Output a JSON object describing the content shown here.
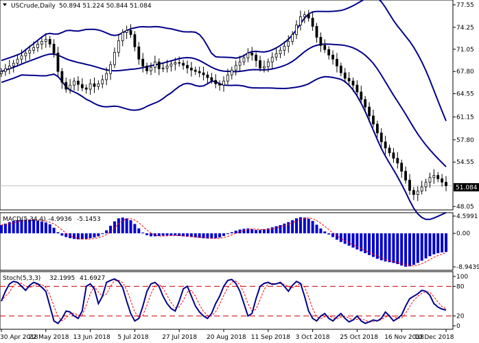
{
  "window": {
    "symbol_header": "USCrude,Daily",
    "ohlc_header": "50.894 51.224 50.844 51.084"
  },
  "current_price": "51.084",
  "colors": {
    "bands": "#00008b",
    "candle": "#000000",
    "macd_hist": "#0000cd",
    "signal": "#ff0000",
    "stoch_main": "#00008b",
    "stoch_signal": "#ff0000",
    "level_line": "#cc0000",
    "price_line": "#c0c0c0"
  },
  "chart_data": [
    {
      "type": "candlestick",
      "title": "USCrude,Daily",
      "indicators": [
        "Bollinger Bands"
      ],
      "y_ticks": [
        "77.55",
        "74.25",
        "71.05",
        "67.80",
        "64.55",
        "61.15",
        "57.80",
        "54.55",
        "51.084",
        "48.05"
      ],
      "ylim": [
        48.05,
        77.55
      ],
      "x_ticks": [
        "30 Apr 2018",
        "22 May 2018",
        "13 Jun 2018",
        "5 Jul 2018",
        "27 Jul 2018",
        "20 Aug 2018",
        "11 Sep 2018",
        "3 Oct 2018",
        "25 Oct 2018",
        "16 Nov 2018",
        "10 Dec 2018"
      ],
      "close_series": [
        67.8,
        68.2,
        68.6,
        69.0,
        69.6,
        70.1,
        70.5,
        70.9,
        71.3,
        71.8,
        72.2,
        72.5,
        71.8,
        70.5,
        67.8,
        66.2,
        65.2,
        65.8,
        66.4,
        65.9,
        65.4,
        65.2,
        66.0,
        65.6,
        66.0,
        66.6,
        67.5,
        68.8,
        70.6,
        72.3,
        73.5,
        73.8,
        73.2,
        71.4,
        69.6,
        68.6,
        67.9,
        68.4,
        69.2,
        68.2,
        68.3,
        68.6,
        68.9,
        69.1,
        69.0,
        68.7,
        68.3,
        68.0,
        67.8,
        67.6,
        67.3,
        66.9,
        66.5,
        66.0,
        65.8,
        66.4,
        67.3,
        68.0,
        68.7,
        69.2,
        69.8,
        70.5,
        70.2,
        69.4,
        68.3,
        68.5,
        69.2,
        69.9,
        70.4,
        70.9,
        71.5,
        72.2,
        73.2,
        74.6,
        75.8,
        76.1,
        75.6,
        74.4,
        72.8,
        71.6,
        71.0,
        70.2,
        69.6,
        68.6,
        67.6,
        66.8,
        66.4,
        65.8,
        64.8,
        63.7,
        62.6,
        61.3,
        60.1,
        58.8,
        57.5,
        56.6,
        55.9,
        55.1,
        54.4,
        53.2,
        51.9,
        50.4,
        49.8,
        50.3,
        50.9,
        51.6,
        52.3,
        52.6,
        52.1,
        51.6,
        51.084
      ]
    },
    {
      "type": "bar",
      "title": "MACD(5,34,4)",
      "series": [
        {
          "name": "main",
          "value_label": "-4.9936"
        },
        {
          "name": "signal",
          "value_label": "-5.1453"
        }
      ],
      "y_ticks": [
        "4.5991",
        "0.00",
        "-8.9439"
      ],
      "ylim": [
        -8.9439,
        4.5991
      ],
      "main_values": [
        2.2,
        2.6,
        3.0,
        3.3,
        3.5,
        3.6,
        3.7,
        3.7,
        3.6,
        3.4,
        3.2,
        2.9,
        2.4,
        1.5,
        0.3,
        -0.6,
        -1.0,
        -1.3,
        -1.5,
        -1.6,
        -1.6,
        -1.5,
        -1.3,
        -1.1,
        -0.8,
        -0.2,
        0.8,
        2.0,
        3.2,
        4.0,
        4.2,
        4.0,
        3.5,
        2.5,
        1.3,
        0.2,
        -0.5,
        -0.8,
        -0.8,
        -0.7,
        -0.6,
        -0.6,
        -0.6,
        -0.6,
        -0.7,
        -0.8,
        -0.9,
        -1.0,
        -1.1,
        -1.2,
        -1.3,
        -1.4,
        -1.4,
        -1.3,
        -1.1,
        -0.7,
        -0.2,
        0.3,
        0.7,
        1.0,
        1.2,
        1.3,
        1.1,
        0.9,
        0.9,
        1.1,
        1.3,
        1.6,
        1.9,
        2.2,
        2.6,
        3.0,
        3.5,
        4.0,
        4.3,
        4.2,
        3.9,
        3.3,
        2.3,
        1.3,
        0.5,
        -0.3,
        -1.0,
        -1.7,
        -2.3,
        -2.8,
        -3.3,
        -3.8,
        -4.3,
        -4.8,
        -5.3,
        -5.8,
        -6.3,
        -6.8,
        -7.2,
        -7.5,
        -7.7,
        -7.9,
        -8.2,
        -8.6,
        -8.9,
        -8.8,
        -8.4,
        -7.9,
        -7.3,
        -6.7,
        -6.1,
        -5.6,
        -5.3,
        -5.1,
        -4.99
      ]
    },
    {
      "type": "line",
      "title": "Stoch(5,3,3)",
      "series": [
        {
          "name": "main",
          "value_label": "32.1995"
        },
        {
          "name": "signal",
          "value_label": "41.6927"
        }
      ],
      "y_ticks": [
        "100",
        "80",
        "20",
        "0"
      ],
      "levels": [
        80,
        20
      ],
      "ylim": [
        0,
        100
      ],
      "main_values": [
        50,
        70,
        85,
        90,
        88,
        80,
        72,
        82,
        88,
        85,
        78,
        70,
        40,
        10,
        5,
        15,
        30,
        28,
        20,
        15,
        30,
        80,
        85,
        75,
        45,
        60,
        88,
        92,
        95,
        90,
        78,
        50,
        25,
        10,
        15,
        40,
        70,
        85,
        88,
        80,
        60,
        45,
        35,
        30,
        50,
        75,
        80,
        60,
        40,
        28,
        20,
        15,
        25,
        45,
        60,
        80,
        92,
        94,
        86,
        70,
        45,
        20,
        25,
        55,
        80,
        86,
        88,
        84,
        85,
        88,
        80,
        70,
        82,
        90,
        86,
        60,
        30,
        15,
        10,
        20,
        25,
        15,
        10,
        18,
        25,
        15,
        8,
        12,
        20,
        10,
        5,
        8,
        12,
        10,
        15,
        28,
        20,
        10,
        15,
        22,
        40,
        55,
        60,
        65,
        72,
        70,
        62,
        45,
        38,
        34,
        32
      ]
    }
  ]
}
